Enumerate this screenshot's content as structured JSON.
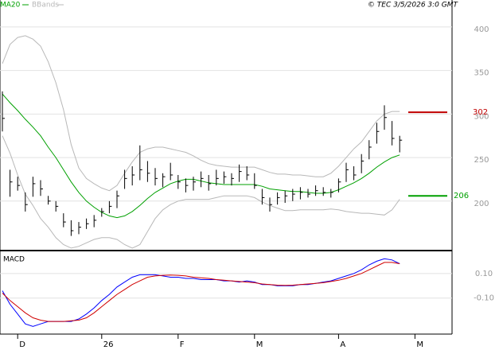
{
  "chart_data": [
    {
      "type": "ohlc",
      "credit": "© TEC 3/5/2026 3:0 GMT",
      "categories": [
        "",
        "",
        "D",
        "",
        "",
        "",
        "",
        "",
        "",
        "",
        "",
        "",
        "",
        "26",
        "",
        "",
        "",
        "",
        "",
        "",
        "",
        "",
        "",
        "F",
        "",
        "",
        "",
        "",
        "",
        "",
        "",
        "",
        "",
        "M",
        "",
        "",
        "",
        "",
        "",
        "",
        "",
        "",
        "",
        "",
        "A",
        "",
        "",
        "",
        "",
        "",
        "",
        "",
        "",
        "",
        "M"
      ],
      "high": [
        326,
        236,
        228,
        210,
        228,
        224,
        206,
        200,
        186,
        178,
        176,
        180,
        184,
        192,
        200,
        212,
        236,
        240,
        264,
        246,
        238,
        232,
        244,
        230,
        226,
        228,
        234,
        230,
        236,
        234,
        232,
        242,
        240,
        232,
        214,
        204,
        210,
        212,
        214,
        216,
        214,
        218,
        216,
        214,
        226,
        244,
        240,
        254,
        270,
        290,
        310,
        292,
        275,
        null,
        null
      ],
      "low": [
        280,
        205,
        212,
        188,
        205,
        206,
        196,
        188,
        170,
        160,
        162,
        168,
        170,
        182,
        186,
        192,
        214,
        218,
        224,
        222,
        218,
        216,
        224,
        214,
        210,
        212,
        216,
        212,
        218,
        220,
        218,
        222,
        224,
        214,
        196,
        188,
        196,
        198,
        200,
        202,
        204,
        206,
        206,
        204,
        210,
        222,
        224,
        232,
        248,
        266,
        282,
        264,
        256,
        null,
        null
      ],
      "close": [
        295,
        222,
        218,
        196,
        220,
        214,
        200,
        194,
        176,
        166,
        170,
        174,
        178,
        188,
        194,
        206,
        226,
        230,
        236,
        232,
        226,
        228,
        230,
        222,
        218,
        222,
        226,
        220,
        226,
        228,
        226,
        234,
        230,
        218,
        204,
        196,
        204,
        206,
        208,
        210,
        208,
        212,
        210,
        210,
        222,
        236,
        230,
        246,
        262,
        280,
        296,
        272,
        270,
        null,
        null
      ],
      "color": "#000000",
      "series": [
        {
          "name": "MA20",
          "color": "#00a000",
          "values": [
            323,
            313,
            304,
            294,
            285,
            275,
            262,
            250,
            236,
            222,
            210,
            200,
            193,
            187,
            183,
            181,
            183,
            188,
            195,
            203,
            210,
            215,
            220,
            223,
            225,
            225,
            223,
            221,
            220,
            219,
            219,
            219,
            219,
            219,
            217,
            214,
            213,
            212,
            211,
            211,
            210,
            209,
            209,
            210,
            213,
            217,
            221,
            226,
            232,
            239,
            245,
            250,
            253,
            null,
            null
          ]
        }
      ],
      "bbands": {
        "name": "BBands",
        "color": "#b8b8b8",
        "upper": [
          358,
          380,
          388,
          390,
          386,
          378,
          360,
          336,
          305,
          265,
          238,
          226,
          220,
          215,
          212,
          218,
          232,
          245,
          256,
          260,
          262,
          262,
          260,
          258,
          256,
          252,
          247,
          243,
          241,
          240,
          239,
          239,
          239,
          239,
          236,
          233,
          231,
          231,
          230,
          230,
          229,
          228,
          228,
          232,
          240,
          250,
          260,
          268,
          280,
          292,
          300,
          303,
          303,
          null,
          null
        ],
        "lower": [
          275,
          255,
          230,
          208,
          195,
          180,
          170,
          158,
          150,
          146,
          148,
          152,
          156,
          158,
          158,
          156,
          150,
          146,
          150,
          165,
          180,
          190,
          196,
          200,
          202,
          202,
          202,
          202,
          204,
          206,
          206,
          206,
          206,
          204,
          199,
          195,
          192,
          189,
          189,
          190,
          190,
          190,
          190,
          191,
          190,
          188,
          187,
          186,
          186,
          185,
          184,
          190,
          202,
          null,
          null
        ]
      },
      "levels": [
        {
          "value": 302,
          "color": "#c00000"
        },
        {
          "value": 206,
          "color": "#00a000"
        }
      ],
      "ylim": [
        145,
        431
      ],
      "yticks": [
        200,
        250,
        300,
        350,
        400
      ],
      "grid": true
    },
    {
      "type": "line",
      "title": "MACD",
      "series": [
        {
          "color": "#0000ff",
          "values": [
            -0.04,
            -0.15,
            -0.23,
            -0.31,
            -0.33,
            -0.31,
            -0.29,
            -0.29,
            -0.29,
            -0.29,
            -0.27,
            -0.23,
            -0.18,
            -0.12,
            -0.07,
            -0.01,
            0.03,
            0.07,
            0.09,
            0.09,
            0.09,
            0.08,
            0.07,
            0.07,
            0.06,
            0.06,
            0.05,
            0.05,
            0.05,
            0.04,
            0.04,
            0.03,
            0.04,
            0.03,
            0.01,
            0.01,
            0.0,
            0.0,
            0.0,
            0.01,
            0.01,
            0.02,
            0.03,
            0.04,
            0.06,
            0.08,
            0.1,
            0.13,
            0.17,
            0.2,
            0.22,
            0.21,
            0.18,
            null,
            null
          ]
        },
        {
          "color": "#d00000",
          "values": [
            -0.06,
            -0.12,
            -0.17,
            -0.22,
            -0.26,
            -0.28,
            -0.29,
            -0.29,
            -0.29,
            -0.285,
            -0.28,
            -0.26,
            -0.22,
            -0.17,
            -0.12,
            -0.07,
            -0.03,
            0.01,
            0.04,
            0.07,
            0.08,
            0.085,
            0.087,
            0.085,
            0.08,
            0.07,
            0.065,
            0.06,
            0.05,
            0.045,
            0.04,
            0.035,
            0.03,
            0.025,
            0.015,
            0.01,
            0.005,
            0.003,
            0.005,
            0.01,
            0.015,
            0.02,
            0.025,
            0.035,
            0.045,
            0.06,
            0.08,
            0.1,
            0.13,
            0.16,
            0.19,
            0.19,
            0.18,
            null,
            null
          ]
        }
      ],
      "ylim": [
        -0.38,
        0.28
      ],
      "yticks": [
        {
          "value": 0.1,
          "label": "0.10"
        },
        {
          "value": -0.1,
          "label": "-0.10"
        }
      ],
      "grid": true
    }
  ]
}
